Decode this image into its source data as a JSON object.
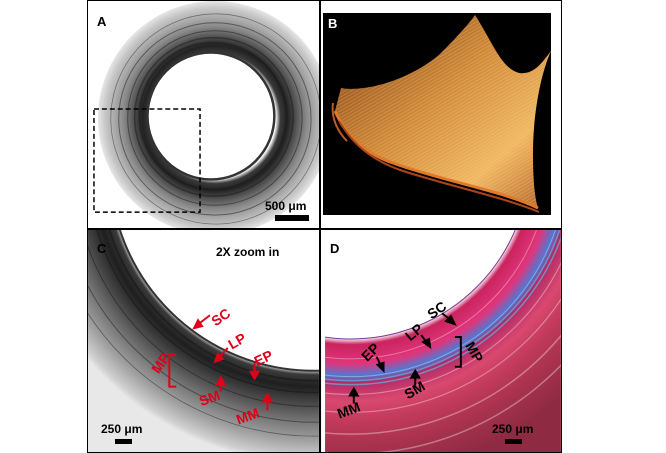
{
  "figure": {
    "panel_a": {
      "label": "A",
      "scale_bar": "500 μm"
    },
    "panel_b": {
      "label": "B"
    },
    "panel_c": {
      "label": "C",
      "zoom_note": "2X zoom in",
      "scale_bar": "250 μm",
      "annotations": {
        "sc": "SC",
        "lp": "LP",
        "ep": "EP",
        "mp": "MP",
        "sm": "SM",
        "mm": "MM"
      },
      "annotation_color": "#e0001a"
    },
    "panel_d": {
      "label": "D",
      "scale_bar": "250 μm",
      "annotations": {
        "sc": "SC",
        "lp": "LP",
        "ep": "EP",
        "mp": "MP",
        "sm": "SM",
        "mm": "MM"
      },
      "annotation_color": "#000000"
    }
  }
}
